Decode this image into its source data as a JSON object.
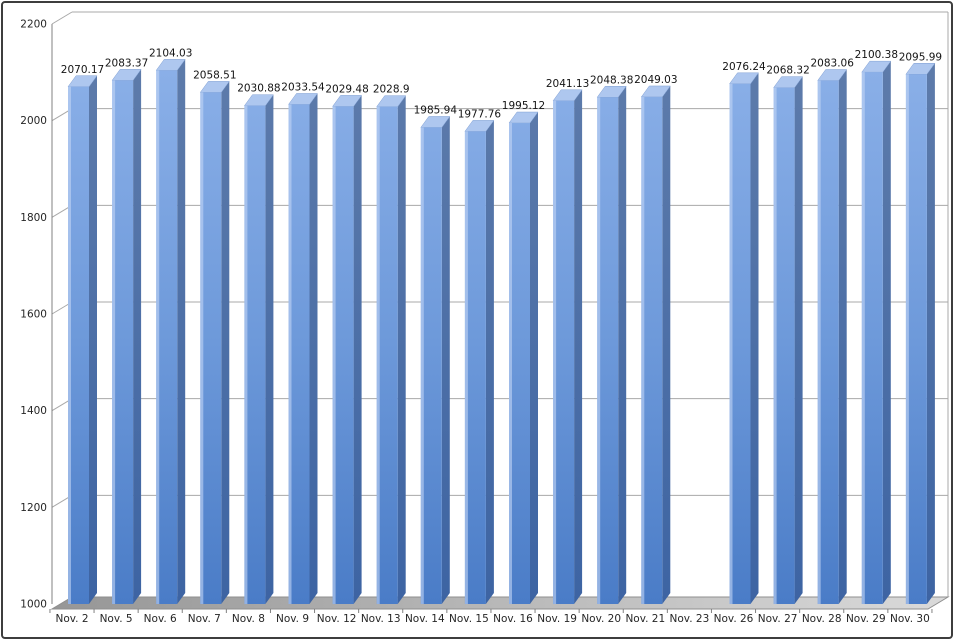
{
  "chart_data": {
    "type": "bar",
    "style": "3d-column",
    "title": "",
    "xlabel": "",
    "ylabel": "",
    "categories": [
      "Nov. 2",
      "Nov. 5",
      "Nov. 6",
      "Nov. 7",
      "Nov. 8",
      "Nov. 9",
      "Nov. 12",
      "Nov. 13",
      "Nov. 14",
      "Nov. 15",
      "Nov. 16",
      "Nov. 19",
      "Nov. 20",
      "Nov. 21",
      "Nov. 23",
      "Nov. 26",
      "Nov. 27",
      "Nov. 28",
      "Nov. 29",
      "Nov. 30"
    ],
    "values": [
      2070.17,
      2083.37,
      2104.03,
      2058.51,
      2030.88,
      2033.54,
      2029.48,
      2028.9,
      1985.94,
      1977.76,
      1995.12,
      2041.13,
      2048.38,
      2049.03,
      null,
      2076.24,
      2068.32,
      2083.06,
      2100.38,
      2095.99
    ],
    "data_labels": [
      "2070.17",
      "2083.37",
      "2104.03",
      "2058.51",
      "2030.88",
      "2033.54",
      "2029.48",
      "2028.9",
      "1985.94",
      "1977.76",
      "1995.12",
      "2041.13",
      "2048.38",
      "2049.03",
      "",
      "2076.24",
      "2068.32",
      "2083.06",
      "2100.38",
      "2095.99"
    ],
    "ylim": [
      1000,
      2200
    ],
    "yticks": [
      1000,
      1200,
      1400,
      1600,
      1800,
      2000,
      2200
    ],
    "grid": true,
    "legend": false,
    "colors": {
      "bar_front_top": "#8fb3ea",
      "bar_front_mid": "#6d99da",
      "bar_front_bottom": "#4a7cc7",
      "bar_side_top": "#607dab",
      "bar_side_bottom": "#3d64a3",
      "bar_top_face": "#aec7ef",
      "bar_highlight": "#c3d5f5",
      "gridline": "#a8a8a8",
      "axis": "#808080",
      "floor_left": "#969696",
      "floor_right": "#dadada",
      "text": "#262626"
    }
  },
  "frame": {
    "background": "#ffffff",
    "border_color": "#3d3d3d"
  }
}
